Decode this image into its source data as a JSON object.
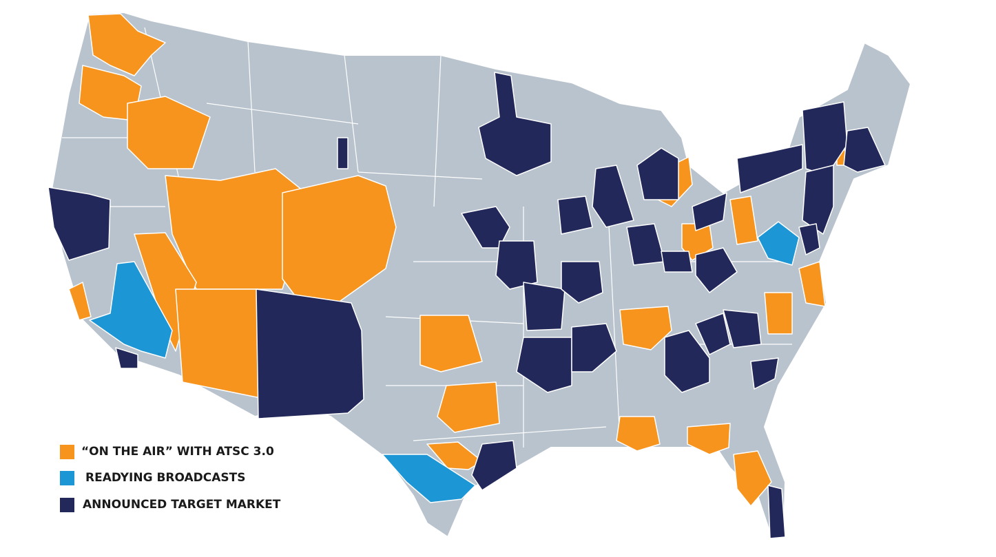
{
  "legend": [
    {
      "label": "“ON THE AIR” WITH ATSC 3.0",
      "color": "#f7941d"
    },
    {
      "label": "READYING BROADCASTS",
      "color": "#1c96d4"
    },
    {
      "label": "ANNOUNCED TARGET MARKET",
      "color": "#23285a"
    }
  ]
}
